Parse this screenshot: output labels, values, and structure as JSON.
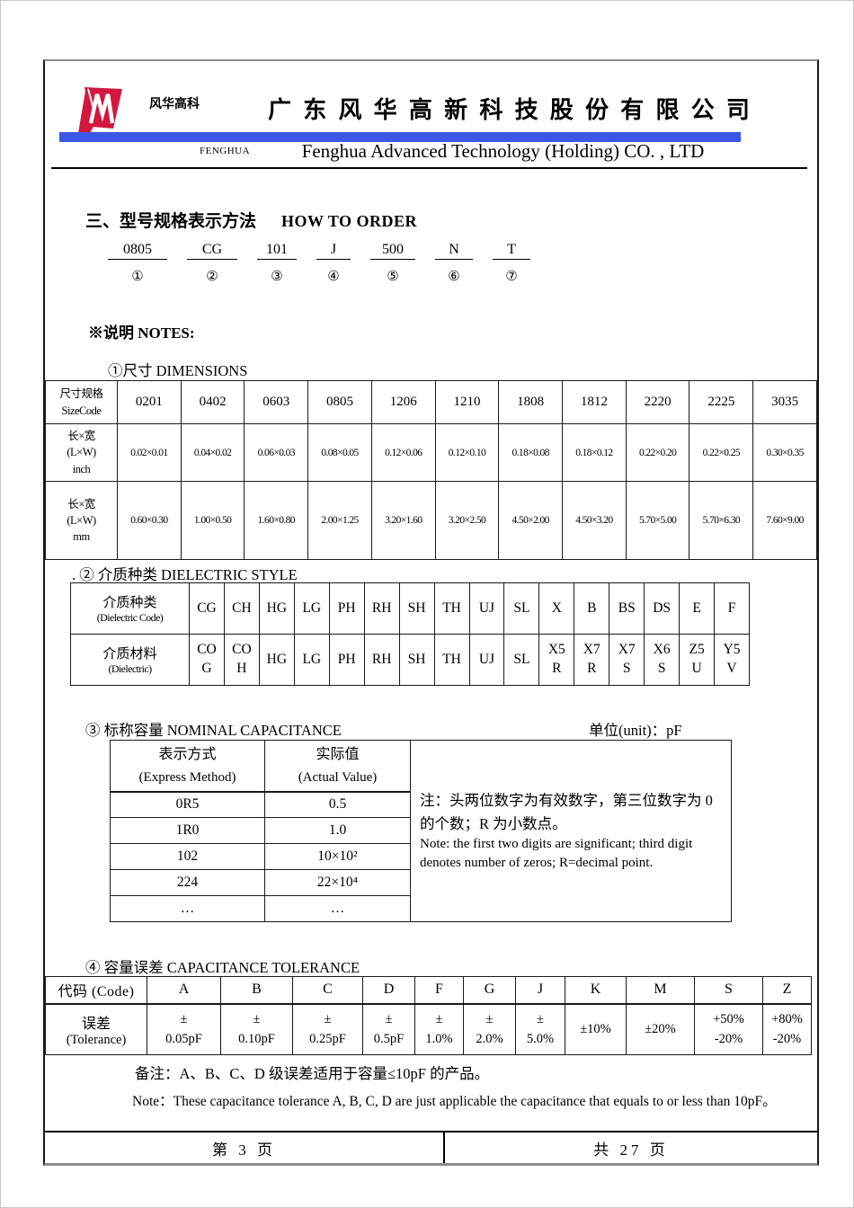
{
  "header": {
    "logo_caption": "风华高科",
    "company_cn": "广 东 风 华 高 新 科 技 股 份 有 限 公 司",
    "brand": "FENGHUA",
    "company_en": "Fenghua Advanced Technology (Holding) CO. , LTD",
    "colors": {
      "accent_blue": "#3a57e8",
      "logo_red": "#d3173e"
    }
  },
  "how_to_order": {
    "title_cn": "三、型号规格表示方法",
    "title_en": "HOW TO ORDER",
    "codes": [
      "0805",
      "CG",
      "101",
      "J",
      "500",
      "N",
      "T"
    ],
    "marks": [
      "①",
      "②",
      "③",
      "④",
      "⑤",
      "⑥",
      "⑦"
    ],
    "notes_label": "※说明  NOTES:"
  },
  "dimensions": {
    "heading": "①尺寸   DIMENSIONS",
    "header_cn": "尺寸规格",
    "header_en": "SizeCode",
    "codes": [
      "0201",
      "0402",
      "0603",
      "0805",
      "1206",
      "1210",
      "1808",
      "1812",
      "2220",
      "2225",
      "3035"
    ],
    "inch_label": [
      "长×宽",
      "(L×W)",
      "inch"
    ],
    "inch_values": [
      "0.02×0.01",
      "0.04×0.02",
      "0.06×0.03",
      "0.08×0.05",
      "0.12×0.06",
      "0.12×0.10",
      "0.18×0.08",
      "0.18×0.12",
      "0.22×0.20",
      "0.22×0.25",
      "0.30×0.35"
    ],
    "mm_label": [
      "长×宽",
      "(L×W)",
      "mm"
    ],
    "mm_values": [
      "0.60×0.30",
      "1.00×0.50",
      "1.60×0.80",
      "2.00×1.25",
      "3.20×1.60",
      "3.20×2.50",
      "4.50×2.00",
      "4.50×3.20",
      "5.70×5.00",
      "5.70×6.30",
      "7.60×9.00"
    ]
  },
  "dielectric": {
    "heading": ".  ② 介质种类 DIELECTRIC STYLE",
    "code_header_cn": "介质种类",
    "code_header_en": "(Dielectric Code)",
    "codes": [
      "CG",
      "CH",
      "HG",
      "LG",
      "PH",
      "RH",
      "SH",
      "TH",
      "UJ",
      "SL",
      "X",
      "B",
      "BS",
      "DS",
      "E",
      "F"
    ],
    "material_header_cn": "介质材料",
    "material_header_en": "(Dielectric)",
    "materials": [
      [
        "CO",
        "G"
      ],
      [
        "CO",
        "H"
      ],
      [
        "HG"
      ],
      [
        "LG"
      ],
      [
        "PH"
      ],
      [
        "RH"
      ],
      [
        "SH"
      ],
      [
        "TH"
      ],
      [
        "UJ"
      ],
      [
        "SL"
      ],
      [
        "X5",
        "R"
      ],
      [
        "X7",
        "R"
      ],
      [
        "X7",
        "S"
      ],
      [
        "X6",
        "S"
      ],
      [
        "Z5",
        "U"
      ],
      [
        "Y5",
        "V"
      ]
    ]
  },
  "capacitance": {
    "heading": "③ 标称容量  NOMINAL CAPACITANCE",
    "unit": "单位(unit)：pF",
    "express_header_cn": "表示方式",
    "express_header_en": "(Express Method)",
    "actual_header_cn": "实际值",
    "actual_header_en": "(Actual Value)",
    "rows": [
      {
        "express": "0R5",
        "actual": "0.5"
      },
      {
        "express": "1R0",
        "actual": "1.0"
      },
      {
        "express": "102",
        "actual": "10×10²"
      },
      {
        "express": "224",
        "actual": "22×10⁴"
      },
      {
        "express": "…",
        "actual": "…"
      }
    ],
    "note_cn": "注：头两位数字为有效数字，第三位数字为 0 的个数；R 为小数点。",
    "note_en": "Note: the first two digits are significant; third digit denotes number of zeros; R=decimal point."
  },
  "tolerance": {
    "heading": "④ 容量误差 CAPACITANCE TOLERANCE",
    "code_header": "代码 (Code)",
    "tol_header_cn": "误差",
    "tol_header_en": "(Tolerance)",
    "codes": [
      "A",
      "B",
      "C",
      "D",
      "F",
      "G",
      "J",
      "K",
      "M",
      "S",
      "Z"
    ],
    "values": [
      [
        "±",
        "0.05pF"
      ],
      [
        "±",
        "0.10pF"
      ],
      [
        "±",
        "0.25pF"
      ],
      [
        "±",
        "0.5pF"
      ],
      [
        "±",
        "1.0%"
      ],
      [
        "±",
        "2.0%"
      ],
      [
        "±",
        "5.0%"
      ],
      [
        "±10%"
      ],
      [
        "±20%"
      ],
      [
        "+50%",
        "-20%"
      ],
      [
        "+80%",
        "-20%"
      ]
    ],
    "remark_cn": "备注：A、B、C、D 级误差适用于容量≤10pF 的产品。",
    "remark_en": "Note：These capacitance tolerance A, B, C, D are just applicable the capacitance that equals to or less than 10pF。"
  },
  "footer": {
    "page": "第  3  页",
    "total": "共  27  页"
  }
}
